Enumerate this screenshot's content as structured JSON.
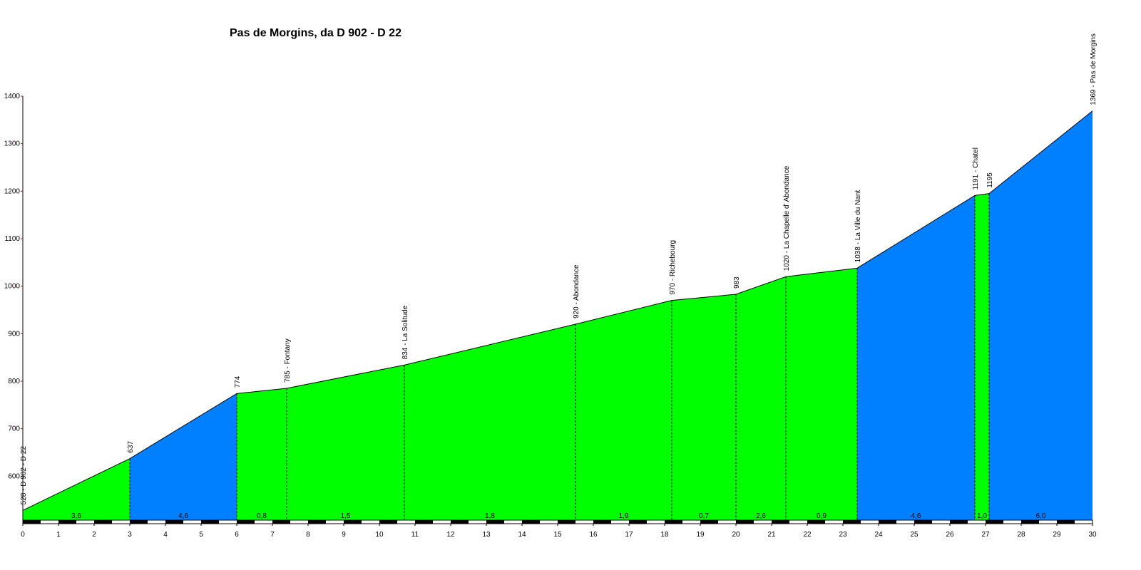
{
  "chart_data": {
    "type": "area",
    "title": "Pas de Morgins, da D 902 - D 22",
    "xlabel": "",
    "ylabel": "",
    "xlim": [
      0,
      30
    ],
    "ylim": [
      500,
      1400
    ],
    "x_ticks": [
      0,
      1,
      2,
      3,
      4,
      5,
      6,
      7,
      8,
      9,
      10,
      11,
      12,
      13,
      14,
      15,
      16,
      17,
      18,
      19,
      20,
      21,
      22,
      23,
      24,
      25,
      26,
      27,
      28,
      29,
      30
    ],
    "y_ticks": [
      600,
      700,
      800,
      900,
      1000,
      1100,
      1200,
      1300,
      1400
    ],
    "points": [
      {
        "x": 0,
        "y": 528,
        "label": "528 - D 902 - D 22"
      },
      {
        "x": 3.0,
        "y": 637,
        "label": "637"
      },
      {
        "x": 6.0,
        "y": 774,
        "label": "774"
      },
      {
        "x": 7.4,
        "y": 785,
        "label": "785 - Fontany"
      },
      {
        "x": 10.7,
        "y": 834,
        "label": "834 - La Solitude"
      },
      {
        "x": 15.5,
        "y": 920,
        "label": "920 - Abondance"
      },
      {
        "x": 18.2,
        "y": 970,
        "label": "970 - Richebourg"
      },
      {
        "x": 20.0,
        "y": 983,
        "label": "983"
      },
      {
        "x": 21.4,
        "y": 1020,
        "label": "1020 - La Chapelle d' Abondance"
      },
      {
        "x": 23.4,
        "y": 1038,
        "label": "1038 - La Ville du Nant"
      },
      {
        "x": 26.7,
        "y": 1191,
        "label": "1191 - Chatel"
      },
      {
        "x": 27.1,
        "y": 1195,
        "label": "1195"
      },
      {
        "x": 30.0,
        "y": 1369,
        "label": "1369 - Pas de Morgins"
      }
    ],
    "segments": [
      {
        "from": 0,
        "to": 3.0,
        "gradient": "3,6",
        "color": "#00ff00"
      },
      {
        "from": 3.0,
        "to": 6.0,
        "gradient": "4,6",
        "color": "#0080ff"
      },
      {
        "from": 6.0,
        "to": 7.4,
        "gradient": "0,8",
        "color": "#00ff00"
      },
      {
        "from": 7.4,
        "to": 10.7,
        "gradient": "1,5",
        "color": "#00ff00"
      },
      {
        "from": 10.7,
        "to": 15.5,
        "gradient": "1,8",
        "color": "#00ff00"
      },
      {
        "from": 15.5,
        "to": 18.2,
        "gradient": "1,9",
        "color": "#00ff00"
      },
      {
        "from": 18.2,
        "to": 20.0,
        "gradient": "0,7",
        "color": "#00ff00"
      },
      {
        "from": 20.0,
        "to": 21.4,
        "gradient": "2,6",
        "color": "#00ff00"
      },
      {
        "from": 21.4,
        "to": 23.4,
        "gradient": "0,9",
        "color": "#00ff00"
      },
      {
        "from": 23.4,
        "to": 26.7,
        "gradient": "4,6",
        "color": "#0080ff"
      },
      {
        "from": 26.7,
        "to": 27.1,
        "gradient": "1,0",
        "color": "#00ff00"
      },
      {
        "from": 27.1,
        "to": 30.0,
        "gradient": "6,0",
        "color": "#0080ff"
      }
    ]
  }
}
